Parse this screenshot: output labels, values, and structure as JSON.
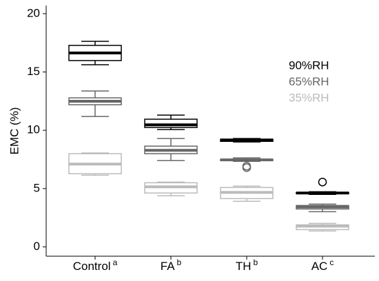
{
  "chart_data": {
    "type": "box",
    "y_label": "EMC (%)",
    "categories": [
      "Control",
      "FA",
      "TH",
      "AC"
    ],
    "category_superscripts": [
      "a",
      "b",
      "b",
      "c"
    ],
    "ylim": [
      -0.8,
      20.7
    ],
    "yticks": [
      0,
      5,
      10,
      15,
      20
    ],
    "legend": "upper right",
    "series": [
      {
        "name": "90%RH",
        "color": "#000000",
        "boxes": [
          {
            "whislo": 15.62,
            "q1": 15.98,
            "med": 16.63,
            "q3": 17.28,
            "whishi": 17.63
          },
          {
            "whislo": 10.06,
            "q1": 10.24,
            "med": 10.47,
            "q3": 10.95,
            "whishi": 11.3
          },
          {
            "whislo": 9.0,
            "q1": 9.05,
            "med": 9.17,
            "q3": 9.23,
            "whishi": 9.29
          },
          {
            "whislo": 4.5,
            "q1": 4.56,
            "med": 4.62,
            "q3": 4.67,
            "whishi": 4.73,
            "fliers": [
              5.56
            ]
          }
        ]
      },
      {
        "name": "65%RH",
        "color": "#666666",
        "boxes": [
          {
            "whislo": 11.18,
            "q1": 12.19,
            "med": 12.49,
            "q3": 12.78,
            "whishi": 13.37
          },
          {
            "whislo": 7.4,
            "q1": 7.99,
            "med": 8.28,
            "q3": 8.64,
            "whishi": 9.29
          },
          {
            "whislo": 7.34,
            "q1": 7.4,
            "med": 7.46,
            "q3": 7.51,
            "whishi": 7.63,
            "fliers": [
              6.92,
              6.8
            ]
          },
          {
            "whislo": 3.02,
            "q1": 3.25,
            "med": 3.43,
            "q3": 3.55,
            "whishi": 3.67
          }
        ]
      },
      {
        "name": "35%RH",
        "color": "#bbbbbb",
        "boxes": [
          {
            "whislo": 6.15,
            "q1": 6.27,
            "med": 7.1,
            "q3": 7.99,
            "whishi": 8.05
          },
          {
            "whislo": 4.38,
            "q1": 4.62,
            "med": 5.15,
            "q3": 5.5,
            "whishi": 5.56
          },
          {
            "whislo": 3.91,
            "q1": 4.14,
            "med": 4.67,
            "q3": 5.09,
            "whishi": 5.21
          },
          {
            "whislo": 1.36,
            "q1": 1.48,
            "med": 1.78,
            "q3": 1.89,
            "whishi": 2.01
          }
        ]
      }
    ]
  }
}
